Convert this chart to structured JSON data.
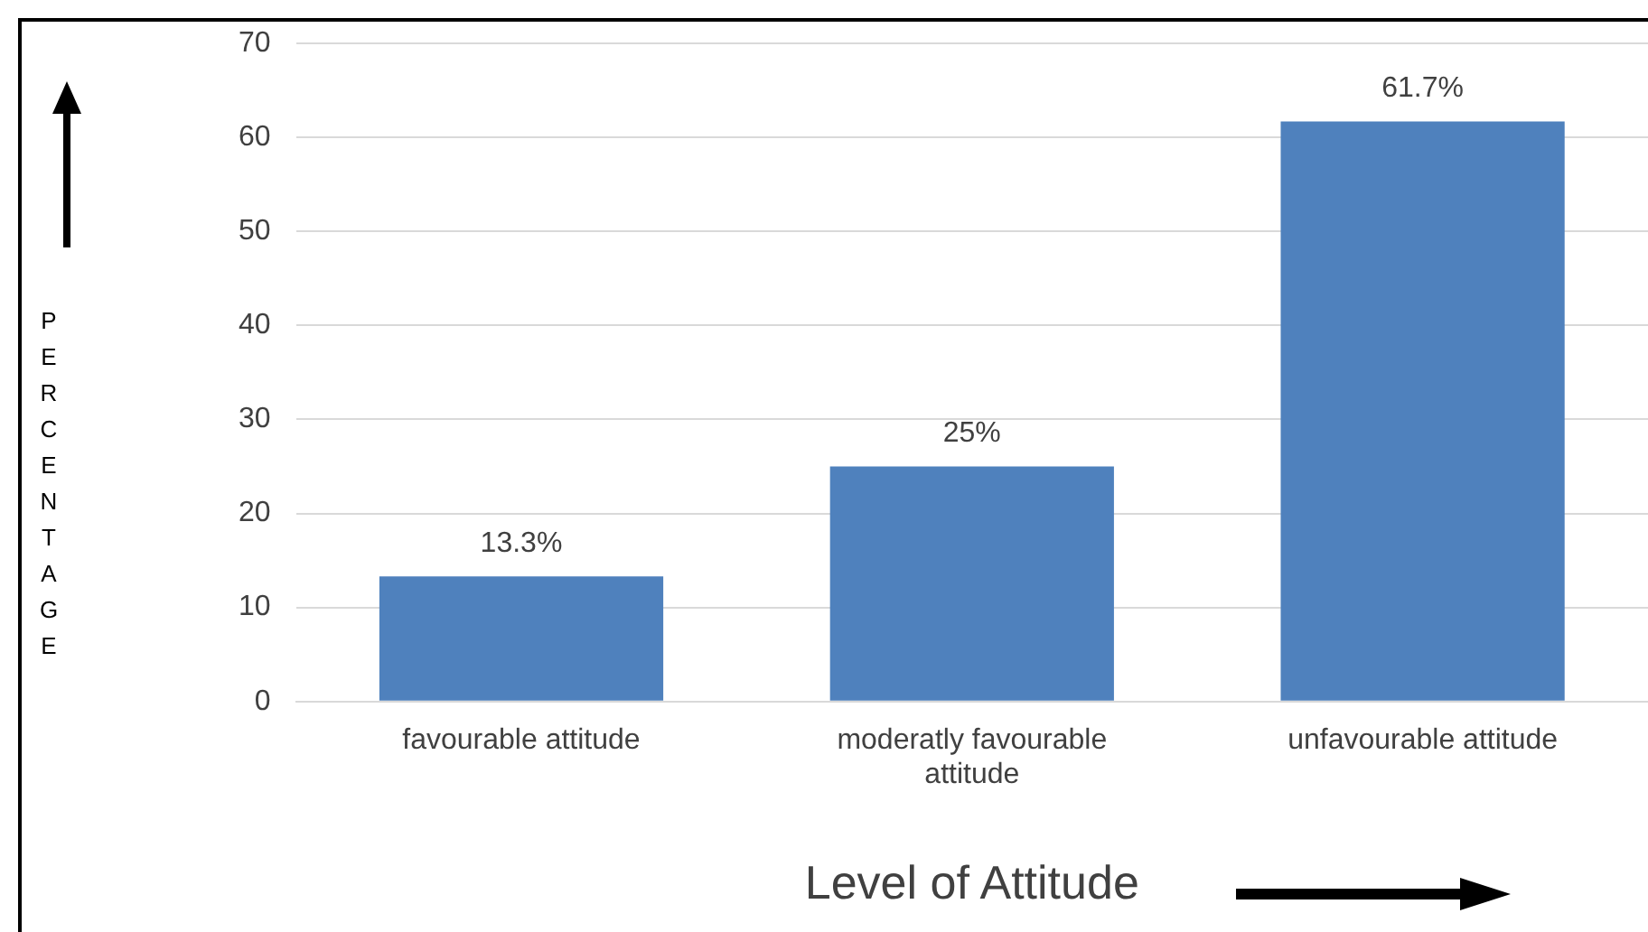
{
  "chart_data": {
    "type": "bar",
    "xlabel": "Level of Attitude",
    "ylabel": "PERCENTAGE",
    "categories": [
      "favourable attitude",
      "moderatly favourable attitude",
      "unfavourable attitude"
    ],
    "values": [
      13.3,
      25,
      61.7
    ],
    "color": "#4f81bd",
    "value_labels": [
      "13.3%",
      "25%",
      "61.7%"
    ],
    "ylim": [
      0,
      70
    ],
    "yticks": [
      0,
      10,
      20,
      30,
      40,
      50,
      60,
      70
    ],
    "grid": "y",
    "legend": false
  }
}
